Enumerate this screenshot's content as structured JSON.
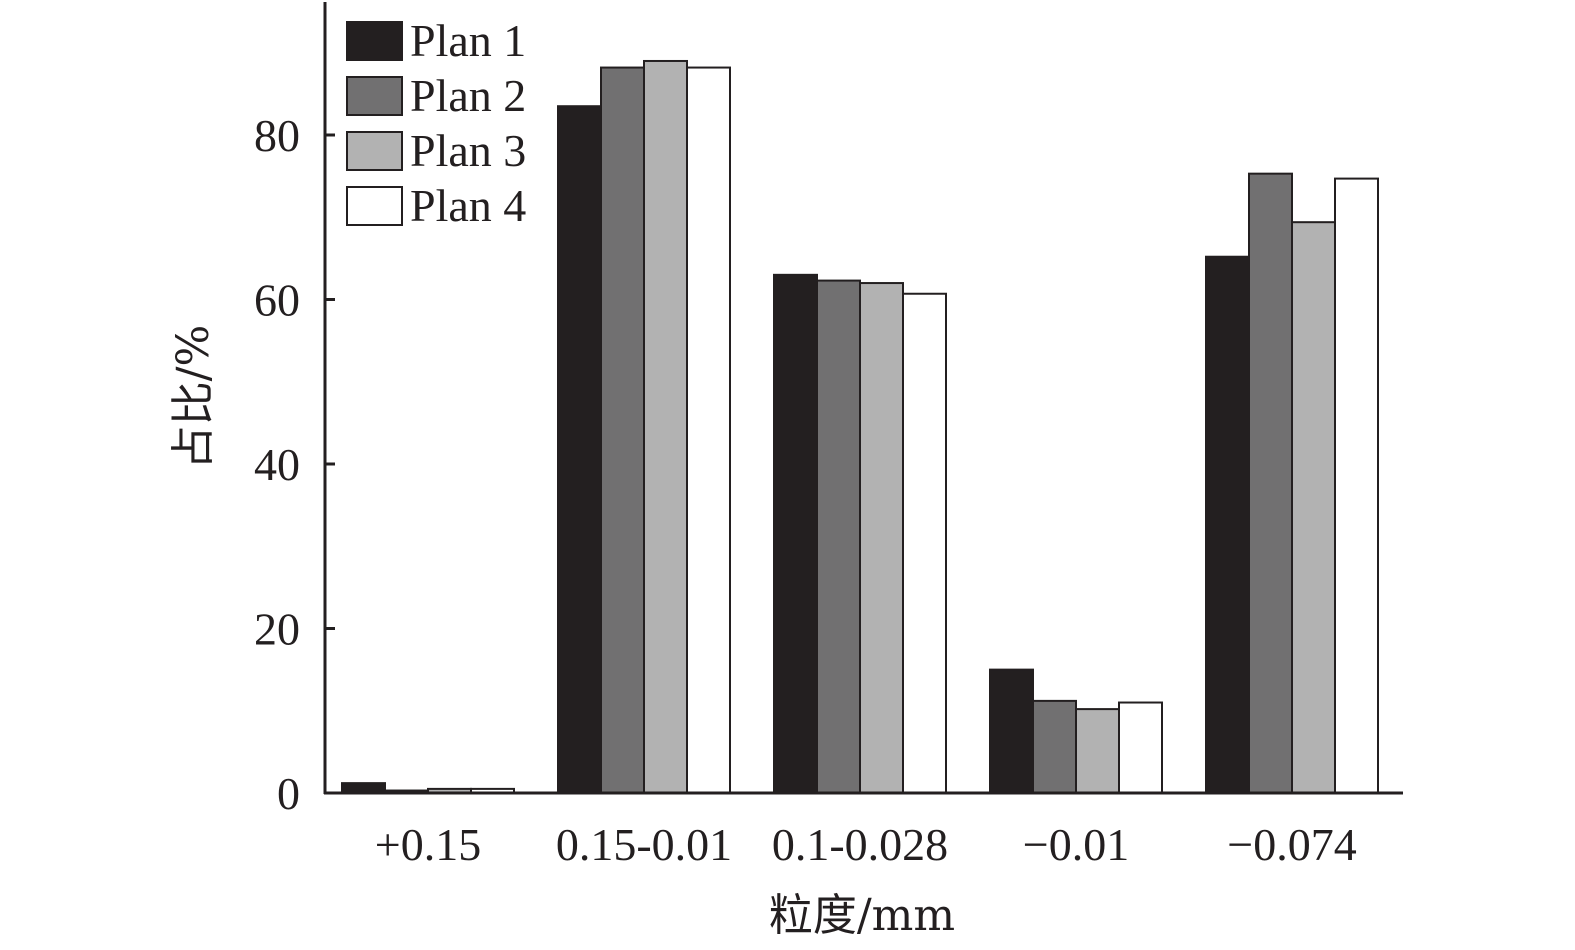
{
  "chart_data": {
    "type": "bar",
    "categories": [
      "+0.15",
      "0.15-0.01",
      "0.1-0.028",
      "−0.01",
      "−0.074"
    ],
    "series": [
      {
        "name": "Plan 1",
        "color": "#231f20",
        "values": [
          1.2,
          83.5,
          63.0,
          15.0,
          65.2
        ]
      },
      {
        "name": "Plan 2",
        "color": "#717071",
        "values": [
          0.3,
          88.2,
          62.3,
          11.2,
          75.3
        ]
      },
      {
        "name": "Plan 3",
        "color": "#b2b2b2",
        "values": [
          0.5,
          89.0,
          62.0,
          10.2,
          69.4
        ]
      },
      {
        "name": "Plan 4",
        "color": "#ffffff",
        "values": [
          0.5,
          88.2,
          60.7,
          11.0,
          74.7
        ]
      }
    ],
    "yticks": [
      0,
      20,
      40,
      60,
      80
    ],
    "ylim": [
      0,
      96
    ],
    "xlabel": "粒度/mm",
    "ylabel": "占比/%",
    "legend_position": "top-left",
    "grid": false
  }
}
